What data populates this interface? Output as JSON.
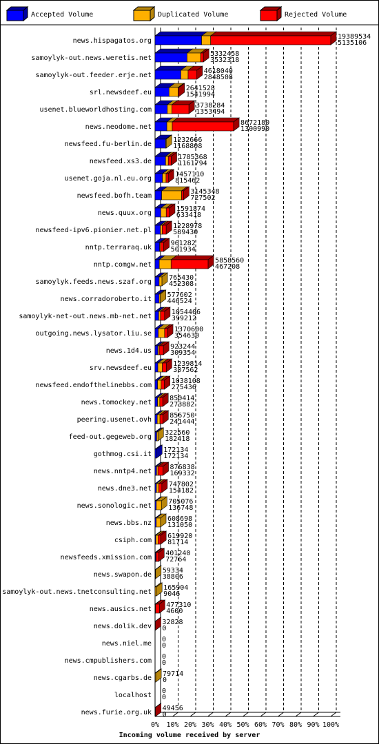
{
  "chart_data": {
    "type": "bar3d_stacked_horizontal",
    "xlabel": "Incoming volume received by server",
    "categories": [
      "news.hispagatos.org",
      "samoylyk-out.news.weretis.net",
      "samoylyk-out.feeder.erje.net",
      "srl.newsdeef.eu",
      "usenet.blueworldhosting.com",
      "news.neodome.net",
      "newsfeed.fu-berlin.de",
      "newsfeed.xs3.de",
      "usenet.goja.nl.eu.org",
      "newsfeed.bofh.team",
      "news.quux.org",
      "newsfeed-ipv6.pionier.net.pl",
      "nntp.terraraq.uk",
      "nntp.comgw.net",
      "samoylyk.feeds.news.szaf.org",
      "news.corradoroberto.it",
      "samoylyk-net-out.news.mb-net.net",
      "outgoing.news.lysator.liu.se",
      "news.1d4.us",
      "srv.newsdeef.eu",
      "newsfeed.endofthelinebbs.com",
      "news.tomockey.net",
      "peering.usenet.ovh",
      "feed-out.gegeweb.org",
      "gothmog.csi.it",
      "news.nntp4.net",
      "news.dne3.net",
      "news.sonologic.net",
      "news.bbs.nz",
      "csiph.com",
      "newsfeeds.xmission.com",
      "news.swapon.de",
      "samoylyk-out.news.tnetconsulting.net",
      "news.ausics.net",
      "news.dolik.dev",
      "news.niel.me",
      "news.cmpublishers.com",
      "news.cgarbs.de",
      "localhost",
      "news.furie.org.uk"
    ],
    "totals": [
      19389534,
      5332458,
      4618040,
      2641528,
      3738284,
      8672180,
      1232666,
      1785368,
      1457110,
      3145348,
      1591874,
      1228978,
      961282,
      5858560,
      765430,
      577602,
      1054406,
      1370600,
      923244,
      1239814,
      1038108,
      850414,
      856750,
      322560,
      172134,
      876838,
      747802,
      705076,
      608698,
      619920,
      401240,
      59334,
      165904,
      477310,
      32828,
      0,
      0,
      79714,
      0,
      49456
    ],
    "series": [
      {
        "name": "Accepted Volume",
        "color": "#0000ff",
        "top": "#0000a0",
        "values": [
          5135106,
          3532318,
          2848508,
          1541994,
          1353494,
          1300990,
          1168808,
          1161794,
          815462,
          727502,
          633418,
          589430,
          501934,
          467208,
          452308,
          446524,
          399212,
          354630,
          309354,
          307562,
          275436,
          273882,
          241444,
          182418,
          172134,
          169332,
          154182,
          136748,
          131050,
          81714,
          72764,
          38806,
          9046,
          4600,
          0,
          0,
          0,
          0,
          0,
          0
        ]
      },
      {
        "name": "Duplicated Volume",
        "color": "#ffb000",
        "top": "#b8860b",
        "values": [
          1000000,
          1500000,
          800000,
          1000000,
          500000,
          600000,
          63858,
          300000,
          400000,
          2200000,
          600000,
          200000,
          100000,
          1300000,
          313122,
          131078,
          200000,
          700000,
          150000,
          500000,
          400000,
          250000,
          300000,
          140142,
          0,
          150000,
          250000,
          568328,
          477648,
          250000,
          50000,
          20528,
          156858,
          50000,
          0,
          0,
          0,
          79714,
          0,
          0
        ]
      },
      {
        "name": "Rejected Volume",
        "color": "#ff0000",
        "top": "#a00000",
        "values": [
          13254428,
          300140,
          969532,
          99534,
          1884790,
          6771190,
          0,
          323574,
          241648,
          217846,
          358456,
          439548,
          359348,
          4091352,
          0,
          0,
          455194,
          315970,
          463890,
          432252,
          362672,
          326532,
          315306,
          0,
          0,
          557506,
          343620,
          0,
          0,
          288206,
          278476,
          0,
          0,
          422710,
          32828,
          0,
          0,
          0,
          0,
          49456
        ]
      }
    ],
    "xlim": [
      0,
      19389534
    ],
    "xticks": [
      {
        "value": 0,
        "label": "0%"
      },
      {
        "value": 1938953.4,
        "label": "10%"
      },
      {
        "value": 3877906.8,
        "label": "20%"
      },
      {
        "value": 5816860.2,
        "label": "30%"
      },
      {
        "value": 7755813.6,
        "label": "40%"
      },
      {
        "value": 9694767,
        "label": "50%"
      },
      {
        "value": 11633720.4,
        "label": "60%"
      },
      {
        "value": 13572673.8,
        "label": "70%"
      },
      {
        "value": 15511627.2,
        "label": "80%"
      },
      {
        "value": 17450580.6,
        "label": "90%"
      },
      {
        "value": 19389534,
        "label": "100%"
      }
    ],
    "grid": true
  }
}
